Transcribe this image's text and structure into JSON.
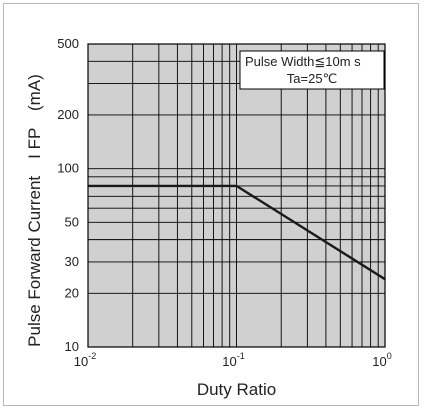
{
  "chart_data": {
    "type": "line",
    "xlabel": "Duty Ratio",
    "ylabel": "Pulse Forward Current　I FP　(mA)",
    "x_scale": "log",
    "y_scale": "log",
    "xlim": [
      0.01,
      1
    ],
    "ylim": [
      10,
      500
    ],
    "grid": true,
    "x_ticks": [
      {
        "value": 0.01,
        "base": "10",
        "exp": "-2"
      },
      {
        "value": 0.1,
        "base": "10",
        "exp": "-1"
      },
      {
        "value": 1,
        "base": "10",
        "exp": "0"
      }
    ],
    "y_ticks": [
      {
        "value": 10,
        "label": "10"
      },
      {
        "value": 20,
        "label": "20"
      },
      {
        "value": 30,
        "label": "30"
      },
      {
        "value": 50,
        "label": "50"
      },
      {
        "value": 100,
        "label": "100"
      },
      {
        "value": 200,
        "label": "200"
      },
      {
        "value": 500,
        "label": "500"
      }
    ],
    "series": [
      {
        "x": [
          0.01,
          0.1,
          1
        ],
        "y": [
          80,
          80,
          24
        ]
      }
    ],
    "annotation": {
      "line1": "Pulse Width≦10m s",
      "line2": "Ta=25℃"
    }
  },
  "colors": {
    "plot_background": "#d0d0d0",
    "grid": "#000000",
    "series": "#1a1a1a"
  }
}
